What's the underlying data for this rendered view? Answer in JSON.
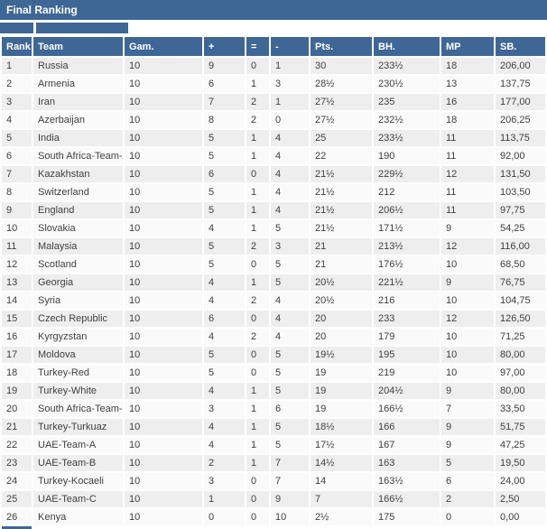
{
  "colors": {
    "accent_blue": "#3e6796",
    "row_odd": "#eeeeee",
    "row_even": "#fafafa",
    "text": "#3f3f3f",
    "header_text": "#ffffff"
  },
  "title_bar": {
    "title": "Final Ranking"
  },
  "table": {
    "columns": [
      "Rank",
      "Team",
      "Gam.",
      "+",
      "=",
      "-",
      "Pts.",
      "BH.",
      "MP",
      "SB."
    ],
    "rows": [
      [
        "1",
        "Russia",
        "10",
        "9",
        "0",
        "1",
        "30",
        "233½",
        "18",
        "206,00"
      ],
      [
        "2",
        "Armenia",
        "10",
        "6",
        "1",
        "3",
        "28½",
        "230½",
        "13",
        "137,75"
      ],
      [
        "3",
        "Iran",
        "10",
        "7",
        "2",
        "1",
        "27½",
        "235",
        "16",
        "177,00"
      ],
      [
        "4",
        "Azerbaijan",
        "10",
        "8",
        "2",
        "0",
        "27½",
        "232½",
        "18",
        "206,25"
      ],
      [
        "5",
        "India",
        "10",
        "5",
        "1",
        "4",
        "25",
        "233½",
        "11",
        "113,75"
      ],
      [
        "6",
        "South Africa-Team-A",
        "10",
        "5",
        "1",
        "4",
        "22",
        "190",
        "11",
        "92,00"
      ],
      [
        "7",
        "Kazakhstan",
        "10",
        "6",
        "0",
        "4",
        "21½",
        "229½",
        "12",
        "131,50"
      ],
      [
        "8",
        "Switzerland",
        "10",
        "5",
        "1",
        "4",
        "21½",
        "212",
        "11",
        "103,50"
      ],
      [
        "9",
        "England",
        "10",
        "5",
        "1",
        "4",
        "21½",
        "206½",
        "11",
        "97,75"
      ],
      [
        "10",
        "Slovakia",
        "10",
        "4",
        "1",
        "5",
        "21½",
        "171½",
        "9",
        "54,25"
      ],
      [
        "11",
        "Malaysia",
        "10",
        "5",
        "2",
        "3",
        "21",
        "213½",
        "12",
        "116,00"
      ],
      [
        "12",
        "Scotland",
        "10",
        "5",
        "0",
        "5",
        "21",
        "176½",
        "10",
        "68,50"
      ],
      [
        "13",
        "Georgia",
        "10",
        "4",
        "1",
        "5",
        "20½",
        "221½",
        "9",
        "76,75"
      ],
      [
        "14",
        "Syria",
        "10",
        "4",
        "2",
        "4",
        "20½",
        "216",
        "10",
        "104,75"
      ],
      [
        "15",
        "Czech Republic",
        "10",
        "6",
        "0",
        "4",
        "20",
        "233",
        "12",
        "126,50"
      ],
      [
        "16",
        "Kyrgyzstan",
        "10",
        "4",
        "2",
        "4",
        "20",
        "179",
        "10",
        "71,25"
      ],
      [
        "17",
        "Moldova",
        "10",
        "5",
        "0",
        "5",
        "19½",
        "195",
        "10",
        "80,00"
      ],
      [
        "18",
        "Turkey-Red",
        "10",
        "5",
        "0",
        "5",
        "19",
        "219",
        "10",
        "97,00"
      ],
      [
        "19",
        "Turkey-White",
        "10",
        "4",
        "1",
        "5",
        "19",
        "204½",
        "9",
        "80,00"
      ],
      [
        "20",
        "South Africa-Team-B",
        "10",
        "3",
        "1",
        "6",
        "19",
        "166½",
        "7",
        "33,50"
      ],
      [
        "21",
        "Turkey-Turkuaz",
        "10",
        "4",
        "1",
        "5",
        "18½",
        "166",
        "9",
        "51,75"
      ],
      [
        "22",
        "UAE-Team-A",
        "10",
        "4",
        "1",
        "5",
        "17½",
        "167",
        "9",
        "47,25"
      ],
      [
        "23",
        "UAE-Team-B",
        "10",
        "2",
        "1",
        "7",
        "14½",
        "163",
        "5",
        "19,50"
      ],
      [
        "24",
        "Turkey-Kocaeli",
        "10",
        "3",
        "0",
        "7",
        "14",
        "163½",
        "6",
        "24,00"
      ],
      [
        "25",
        "UAE-Team-C",
        "10",
        "1",
        "0",
        "9",
        "7",
        "166½",
        "2",
        "2,50"
      ],
      [
        "26",
        "Kenya",
        "10",
        "0",
        "0",
        "10",
        "2½",
        "175",
        "0",
        "0,00"
      ]
    ]
  }
}
